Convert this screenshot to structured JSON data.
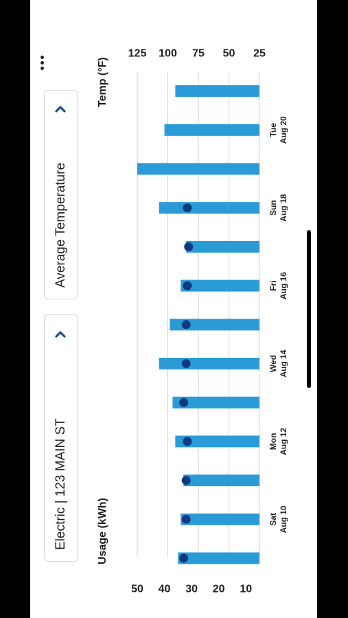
{
  "selectors": {
    "account": "Electric | 123 MAIN ST",
    "metric": "Average Temperature"
  },
  "colors": {
    "bar": "#2b9bd8",
    "dot": "#0e3a82",
    "chevron": "#1e4f8f",
    "grid": "#d0d0d0"
  },
  "icons": {
    "more": "more-vertical-icon",
    "chevron": "chevron-right-icon"
  },
  "chart_data": {
    "type": "bar",
    "title": "",
    "ylabel_left": "Usage (kWh)",
    "ylabel_right": "Temp (°F)",
    "ylim_left": [
      5,
      50
    ],
    "ylim_right": [
      25,
      125
    ],
    "left_ticks": [
      "10",
      "20",
      "30",
      "40",
      "50"
    ],
    "right_ticks": [
      "25",
      "50",
      "75",
      "100",
      "125"
    ],
    "x_labels": [
      {
        "index": 1,
        "day": "Sat",
        "date": "Aug 10"
      },
      {
        "index": 3,
        "day": "Mon",
        "date": "Aug 12"
      },
      {
        "index": 5,
        "day": "Wed",
        "date": "Aug 14"
      },
      {
        "index": 7,
        "day": "Fri",
        "date": "Aug 16"
      },
      {
        "index": 9,
        "day": "Sun",
        "date": "Aug 18"
      },
      {
        "index": 11,
        "day": "Tue",
        "date": "Aug 20"
      }
    ],
    "series": [
      {
        "values": [
          35,
          34,
          33,
          36,
          37,
          42,
          38,
          34,
          32,
          42,
          50,
          40,
          36
        ]
      },
      {
        "values": [
          87,
          85,
          85,
          84,
          87,
          85,
          85,
          84,
          83,
          84,
          null,
          null,
          null
        ]
      }
    ]
  }
}
